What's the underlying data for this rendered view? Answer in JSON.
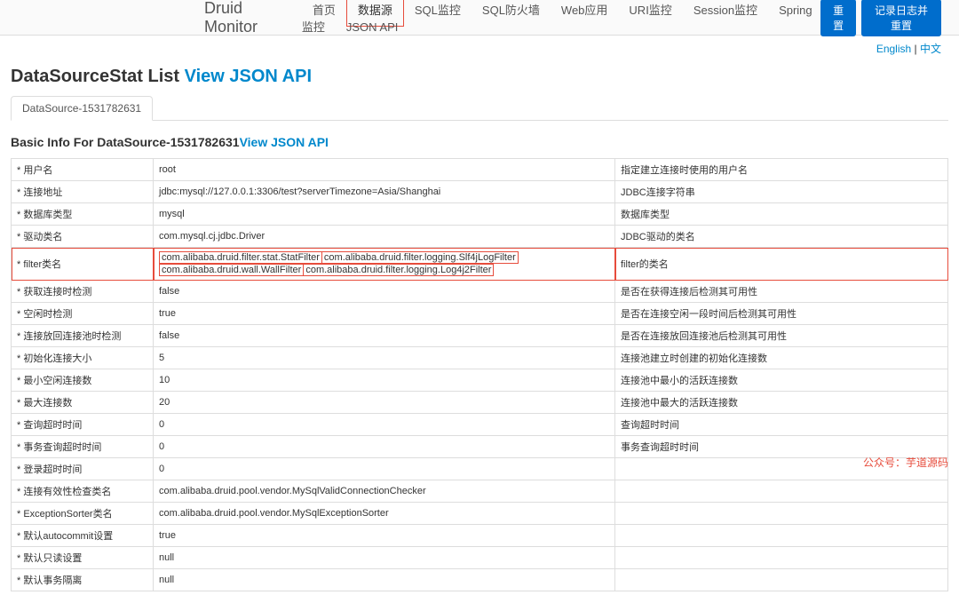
{
  "navbar": {
    "brand": "Druid Monitor",
    "links": [
      "首页",
      "数据源",
      "SQL监控",
      "SQL防火墙",
      "Web应用",
      "URI监控",
      "Session监控",
      "Spring监控",
      "JSON API"
    ],
    "activeIndex": 1,
    "btn1": "重置",
    "btn2": "记录日志并重置"
  },
  "lang": {
    "english": "English",
    "sep": " | ",
    "chinese": "中文"
  },
  "header": {
    "title": "DataSourceStat List ",
    "apiLink": "View JSON API"
  },
  "tab": {
    "label": "DataSource-1531782631"
  },
  "section": {
    "title": "Basic Info For DataSource-1531782631",
    "apiLink": "View JSON API"
  },
  "rows": [
    {
      "label": "* 用户名",
      "value": "root",
      "desc": "指定建立连接时使用的用户名"
    },
    {
      "label": "* 连接地址",
      "value": "jdbc:mysql://127.0.0.1:3306/test?serverTimezone=Asia/Shanghai",
      "desc": "JDBC连接字符串"
    },
    {
      "label": "* 数据库类型",
      "value": "mysql",
      "desc": "数据库类型"
    },
    {
      "label": "* 驱动类名",
      "value": "com.mysql.cj.jdbc.Driver",
      "desc": "JDBC驱动的类名"
    },
    {
      "label": "* filter类名",
      "value": "",
      "desc": "filter的类名",
      "highlight": true,
      "filterBoxes": [
        "com.alibaba.druid.filter.stat.StatFilter",
        "com.alibaba.druid.filter.logging.Slf4jLogFilter",
        "com.alibaba.druid.wall.WallFilter",
        "com.alibaba.druid.filter.logging.Log4j2Filter"
      ]
    },
    {
      "label": "* 获取连接时检测",
      "value": "false",
      "desc": "是否在获得连接后检测其可用性"
    },
    {
      "label": "* 空闲时检测",
      "value": "true",
      "desc": "是否在连接空闲一段时间后检测其可用性"
    },
    {
      "label": "* 连接放回连接池时检测",
      "value": "false",
      "desc": "是否在连接放回连接池后检测其可用性"
    },
    {
      "label": "* 初始化连接大小",
      "value": "5",
      "desc": "连接池建立时创建的初始化连接数"
    },
    {
      "label": "* 最小空闲连接数",
      "value": "10",
      "desc": "连接池中最小的活跃连接数"
    },
    {
      "label": "* 最大连接数",
      "value": "20",
      "desc": "连接池中最大的活跃连接数"
    },
    {
      "label": "* 查询超时时间",
      "value": "0",
      "desc": "查询超时时间"
    },
    {
      "label": "* 事务查询超时时间",
      "value": "0",
      "desc": "事务查询超时时间"
    },
    {
      "label": "* 登录超时时间",
      "value": "0",
      "desc": ""
    },
    {
      "label": "* 连接有效性检查类名",
      "value": "com.alibaba.druid.pool.vendor.MySqlValidConnectionChecker",
      "desc": ""
    },
    {
      "label": "* ExceptionSorter类名",
      "value": "com.alibaba.druid.pool.vendor.MySqlExceptionSorter",
      "desc": ""
    },
    {
      "label": "* 默认autocommit设置",
      "value": "true",
      "desc": ""
    },
    {
      "label": "* 默认只读设置",
      "value": "null",
      "desc": ""
    },
    {
      "label": "* 默认事务隔离",
      "value": "null",
      "desc": ""
    }
  ],
  "watermark": "公众号：芋道源码"
}
